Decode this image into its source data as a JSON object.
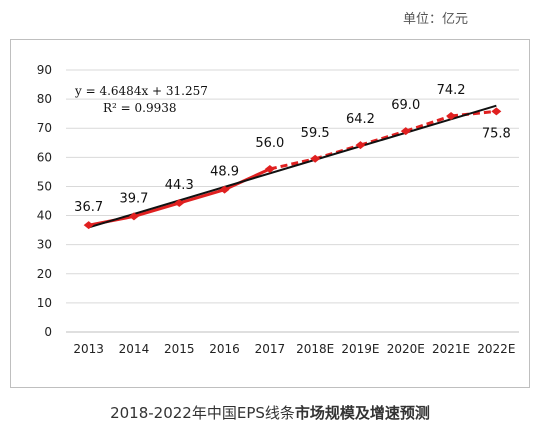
{
  "unit_label": "单位：亿元",
  "caption": {
    "prefix": "2018-2022年中国EPS线条",
    "bold": "市场规模及增速预测"
  },
  "colors": {
    "series": "#e02020",
    "trendline": "#111111",
    "grid": "#d9d9d9",
    "axis_text": "#222222"
  },
  "chart_data": {
    "type": "line",
    "title": "",
    "xlabel": "",
    "ylabel": "",
    "ylim": [
      0,
      90
    ],
    "y_ticks": [
      0,
      10,
      20,
      30,
      40,
      50,
      60,
      70,
      80,
      90
    ],
    "categories": [
      "2013",
      "2014",
      "2015",
      "2016",
      "2017",
      "2018E",
      "2019E",
      "2020E",
      "2021E",
      "2022E"
    ],
    "series": [
      {
        "values": [
          36.7,
          39.7,
          44.3,
          48.9,
          56.0,
          59.5,
          64.2,
          69.0,
          74.2,
          75.8
        ],
        "data_labels": [
          "36.7",
          "39.7",
          "44.3",
          "48.9",
          "56.0",
          "59.5",
          "64.2",
          "69.0",
          "74.2",
          "75.8"
        ],
        "solid_until_index": 4,
        "style_after": "dashed",
        "color": "#e02020"
      }
    ],
    "trendline": {
      "type": "linear",
      "slope": 4.6484,
      "intercept": 31.257,
      "equation": "y = 4.6484x + 31.257",
      "r2": "R² = 0.9938",
      "color": "#111111"
    },
    "grid": true,
    "legend": "none"
  }
}
